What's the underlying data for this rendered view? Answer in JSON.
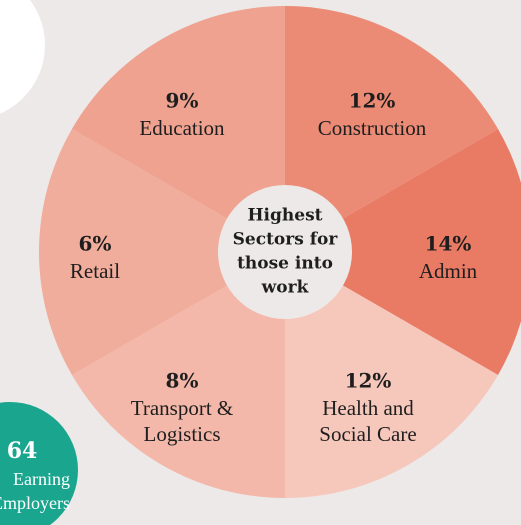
{
  "chart_data": {
    "type": "pie",
    "title": [
      "Highest",
      "Sectors for",
      "those into",
      "work"
    ],
    "categories": [
      [
        "Construction"
      ],
      [
        "Admin"
      ],
      [
        "Health and",
        "Social Care"
      ],
      [
        "Transport &",
        "Logistics"
      ],
      [
        "Retail"
      ],
      [
        "Education"
      ]
    ],
    "values": [
      12,
      14,
      12,
      8,
      6,
      9
    ],
    "value_labels": [
      "12%",
      "14%",
      "12%",
      "8%",
      "6%",
      "9%"
    ],
    "colors": [
      "#ec8b75",
      "#e97b65",
      "#f6c8bc",
      "#f3b8a9",
      "#f1ad9c",
      "#eea28f"
    ]
  },
  "badge": {
    "number": "64",
    "lines": [
      "Earning",
      "Employers"
    ]
  }
}
